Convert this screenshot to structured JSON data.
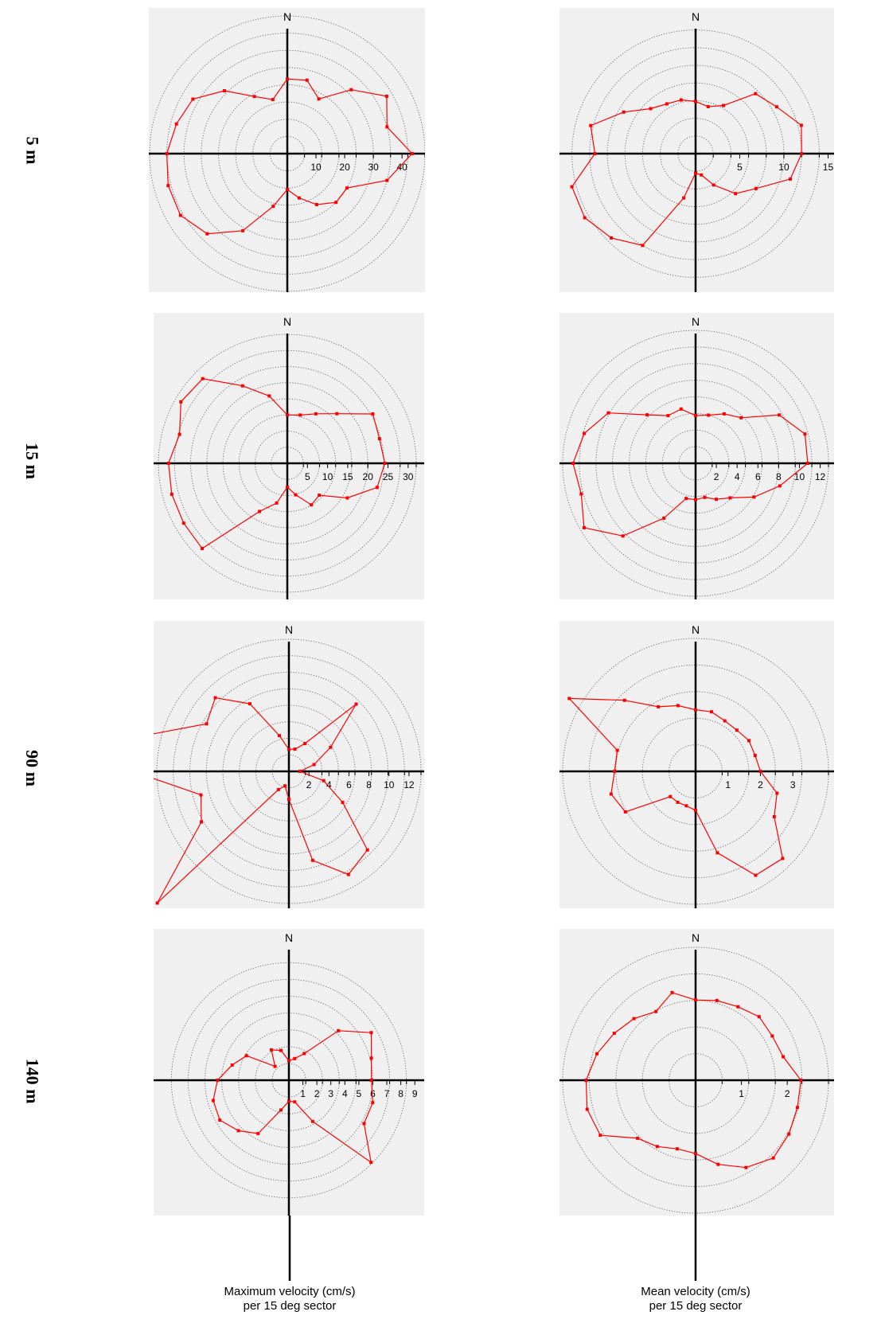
{
  "row_labels": [
    "5 m",
    "15 m",
    "90 m",
    "140 m"
  ],
  "north_label": "N",
  "captions": {
    "max": {
      "line1": "Maximum velocity (cm/s)",
      "line2": "per 15 deg sector"
    },
    "mean": {
      "line1": "Mean velocity (cm/s)",
      "line2": "per 15 deg sector"
    }
  },
  "colors": {
    "series": "#ff0000",
    "axis": "#000000",
    "rings": "#666666",
    "panel_bg": "#f0f0f0"
  },
  "chart_data": [
    {
      "type": "polar",
      "depth": "5 m",
      "quantity": "Maximum velocity (cm/s)",
      "rmax": 48,
      "ring_step": 6,
      "ticks": [
        10,
        20,
        30,
        40
      ],
      "series": [
        {
          "angle_step_deg": 15,
          "values": [
            26,
            26.5,
            22,
            31.5,
            40,
            36,
            43.5,
            36,
            24,
            24,
            20.5,
            16,
            12.5,
            19,
            31,
            39.5,
            43,
            43,
            42,
            40,
            38,
            31,
            23,
            19.5
          ]
        }
      ]
    },
    {
      "type": "polar",
      "depth": "5 m",
      "quantity": "Mean velocity (cm/s)",
      "rmax": 15.5,
      "ring_step": 2,
      "ticks": [
        5,
        10,
        15
      ],
      "series": [
        {
          "angle_step_deg": 15,
          "values": [
            5.9,
            5.5,
            6.3,
            9.6,
            10.6,
            12.4,
            12,
            11.1,
            7.9,
            6.4,
            4.1,
            2.5,
            2.2,
            5.2,
            12,
            13.5,
            14.5,
            14.5,
            11.4,
            12.3,
            9.4,
            7.2,
            6.5,
            6.3
          ]
        }
      ]
    },
    {
      "type": "polar",
      "depth": "15 m",
      "quantity": "Maximum velocity (cm/s)",
      "rmax": 33,
      "ring_step": 4,
      "ticks": [
        5,
        10,
        15,
        20,
        25,
        30
      ],
      "series": [
        {
          "angle_step_deg": 15,
          "values": [
            12,
            12.4,
            14.2,
            17.4,
            24.5,
            23.7,
            24.2,
            23.1,
            17.2,
            11.2,
            11.9,
            8.1,
            5.9,
            10.2,
            13.8,
            29.9,
            29.7,
            29.7,
            29.5,
            27.7,
            30.5,
            29.7,
            22.2,
            17.3
          ]
        }
      ]
    },
    {
      "type": "polar",
      "depth": "15 m",
      "quantity": "Mean velocity (cm/s)",
      "rmax": 12.8,
      "ring_step": 1.6,
      "ticks": [
        2,
        4,
        6,
        8,
        10,
        12
      ],
      "series": [
        {
          "angle_step_deg": 15,
          "values": [
            4.6,
            4.8,
            5.5,
            6.2,
            9.3,
            10.9,
            10.8,
            8.4,
            6.5,
            4.7,
            4,
            3.4,
            3.5,
            3.5,
            6.1,
            9.9,
            12.4,
            11.4,
            11.8,
            11.1,
            9.7,
            6.6,
            5.3,
            5.4
          ]
        }
      ]
    },
    {
      "type": "polar",
      "depth": "90 m",
      "quantity": "Maximum velocity (cm/s)",
      "rmax": 13.2,
      "ring_step": 1.65,
      "ticks": [
        2,
        4,
        6,
        8,
        10,
        12
      ],
      "series": [
        {
          "angle_step_deg": 15,
          "values": [
            2.2,
            2.3,
            3.2,
            9.5,
            4.8,
            2.6,
            1.1,
            3.6,
            6.2,
            11.1,
            11.9,
            9.2,
            2.8,
            1.5,
            2.1,
            18.6,
            10.1,
            9.1,
            15.6,
            14.3,
            9.5,
            10.4,
            7.8,
            3.7
          ]
        }
      ]
    },
    {
      "type": "polar",
      "depth": "90 m",
      "quantity": "Mean velocity (cm/s)",
      "rmax": 4.1,
      "ring_step": 0.82,
      "ticks": [
        1,
        2,
        3
      ],
      "series": [
        {
          "angle_step_deg": 15,
          "values": [
            1.9,
            1.9,
            1.8,
            1.8,
            1.9,
            1.9,
            2,
            2.6,
            2.8,
            3.8,
            3.7,
            2.6,
            1.2,
            1.1,
            1.1,
            1.1,
            2.5,
            2.7,
            2.5,
            2.5,
            4.5,
            3.1,
            2.3,
            2.1
          ]
        }
      ]
    },
    {
      "type": "polar",
      "depth": "140 m",
      "quantity": "Maximum velocity (cm/s)",
      "rmax": 9.5,
      "ring_step": 1.2,
      "ticks": [
        1,
        2,
        3,
        4,
        5,
        6,
        7,
        8,
        9
      ],
      "series": [
        {
          "angle_step_deg": 15,
          "values": [
            1.4,
            1.6,
            2.2,
            5,
            6.8,
            6.1,
            5.9,
            6.2,
            6.2,
            8.3,
            3.4,
            1.6,
            1.5,
            2.2,
            4.4,
            5.1,
            5.7,
            5.6,
            5.1,
            4.2,
            3.5,
            1.4,
            2.5,
            2.2
          ]
        }
      ]
    },
    {
      "type": "polar",
      "depth": "140 m",
      "quantity": "Mean velocity (cm/s)",
      "rmax": 2.9,
      "ring_step": 0.58,
      "ticks": [
        1,
        2
      ],
      "series": [
        {
          "angle_step_deg": 15,
          "values": [
            1.75,
            1.8,
            1.85,
            1.96,
            1.93,
            1.98,
            2.3,
            2.3,
            2.35,
            2.4,
            2.2,
            1.9,
            1.6,
            1.55,
            1.67,
            1.79,
            2.4,
            2.45,
            2.39,
            2.23,
            2.05,
            1.9,
            1.73,
            1.98
          ]
        }
      ]
    }
  ]
}
